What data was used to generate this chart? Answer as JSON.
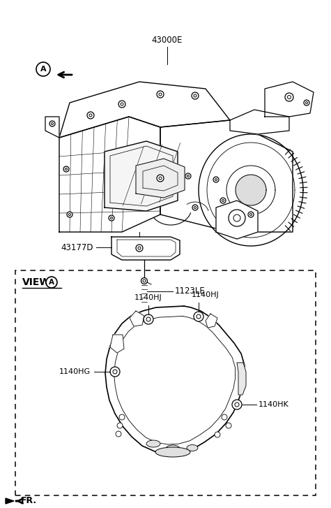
{
  "bg_color": "#ffffff",
  "fig_width": 4.75,
  "fig_height": 7.27,
  "dpi": 100,
  "label_43000E": "43000E",
  "label_43177D": "43177D",
  "label_1123LE": "1123LE",
  "label_1140HJ": "1140HJ",
  "label_1140HG": "1140HG",
  "label_1140HK": "1140HK",
  "label_FR": "FR.",
  "label_VIEW": "VIEW",
  "label_A": "A"
}
